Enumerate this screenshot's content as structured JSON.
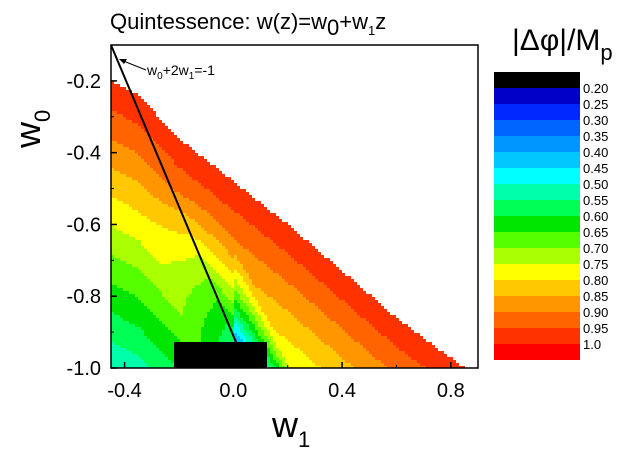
{
  "chart_data": {
    "type": "heatmap",
    "title_main": "Quintessence:  w(z)=w",
    "title_sub0": "0",
    "title_mid": "+w",
    "title_sub1": "1",
    "title_end": "z",
    "xlabel_main": "w",
    "xlabel_sub": "1",
    "ylabel_main": "w",
    "ylabel_sub": "0",
    "xlim": [
      -0.45,
      0.9
    ],
    "ylim": [
      -1.0,
      -0.1
    ],
    "xticks": [
      -0.4,
      0.0,
      0.4,
      0.8
    ],
    "xtick_labels": [
      "-0.4",
      "0.0",
      "0.4",
      "0.8"
    ],
    "yticks": [
      -1.0,
      -0.8,
      -0.6,
      -0.4,
      -0.2
    ],
    "ytick_labels": [
      "-1.0",
      "-0.8",
      "-0.6",
      "-0.4",
      "-0.2"
    ],
    "annotation": {
      "text_a": "w",
      "sub_a": "0",
      "text_b": "+2w",
      "sub_b": "1",
      "text_c": "=-1",
      "line_w1": [
        -0.45,
        0.05
      ],
      "line_w0": [
        -0.1,
        -1.0
      ]
    },
    "colorbar": {
      "title": "|Δφ|/M",
      "title_sub": "p",
      "levels": [
        "0.20",
        "0.25",
        "0.30",
        "0.35",
        "0.40",
        "0.45",
        "0.50",
        "0.55",
        "0.60",
        "0.65",
        "0.70",
        "0.75",
        "0.80",
        "0.85",
        "0.90",
        "0.95",
        "1.0"
      ],
      "colors": [
        "#000000",
        "#0000c8",
        "#0028ff",
        "#0064ff",
        "#0096ff",
        "#00c8ff",
        "#00ffff",
        "#00ffaa",
        "#00ff55",
        "#00e600",
        "#55ff00",
        "#aaff00",
        "#ffff00",
        "#ffc800",
        "#ff9600",
        "#ff6400",
        "#ff3200",
        "#ff0000"
      ]
    },
    "contour_region": {
      "upper_boundary_w1": [
        -0.45,
        -0.35,
        -0.2,
        0.0,
        0.2,
        0.4,
        0.6,
        0.85
      ],
      "upper_boundary_w0": [
        -0.2,
        -0.24,
        -0.36,
        -0.48,
        -0.6,
        -0.73,
        -0.86,
        -1.0
      ]
    }
  }
}
